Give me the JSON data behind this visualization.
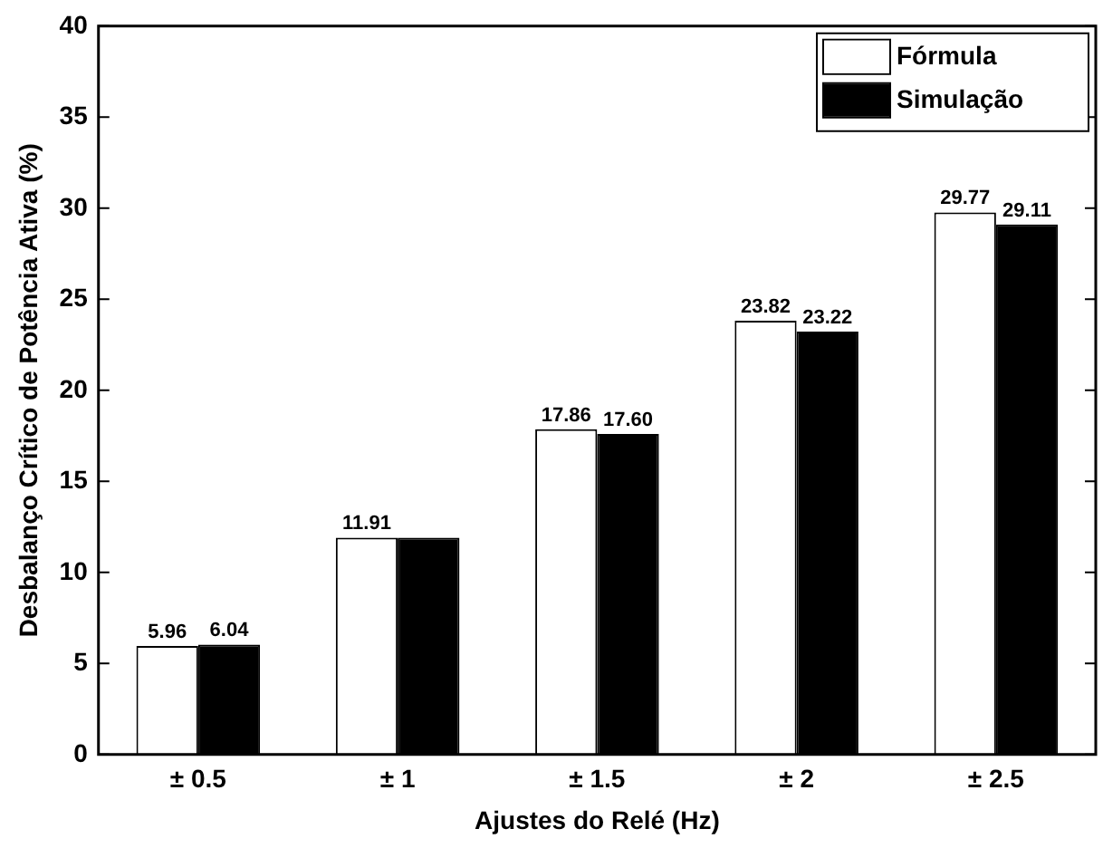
{
  "chart_data": {
    "type": "bar",
    "xlabel": "Ajustes do Relé (Hz)",
    "ylabel": "Desbalanço Crítico de Potência Ativa (%)",
    "categories": [
      "± 0.5",
      "± 1",
      "± 1.5",
      "± 2",
      "± 2.5"
    ],
    "series": [
      {
        "name": "Fórmula",
        "color": "#ffffff",
        "values": [
          5.96,
          11.91,
          17.86,
          23.82,
          29.77
        ],
        "value_labels": [
          "5.96",
          "11.91",
          "17.86",
          "23.82",
          "29.77"
        ]
      },
      {
        "name": "Simulação",
        "color": "#000000",
        "values": [
          6.04,
          11.9,
          17.6,
          23.22,
          29.11
        ],
        "value_labels": [
          "6.04",
          null,
          "17.60",
          "23.22",
          "29.11"
        ]
      }
    ],
    "ylim": [
      0,
      40
    ],
    "yticks": [
      0,
      5,
      10,
      15,
      20,
      25,
      30,
      35,
      40
    ],
    "grid": false,
    "legend": "top right"
  }
}
